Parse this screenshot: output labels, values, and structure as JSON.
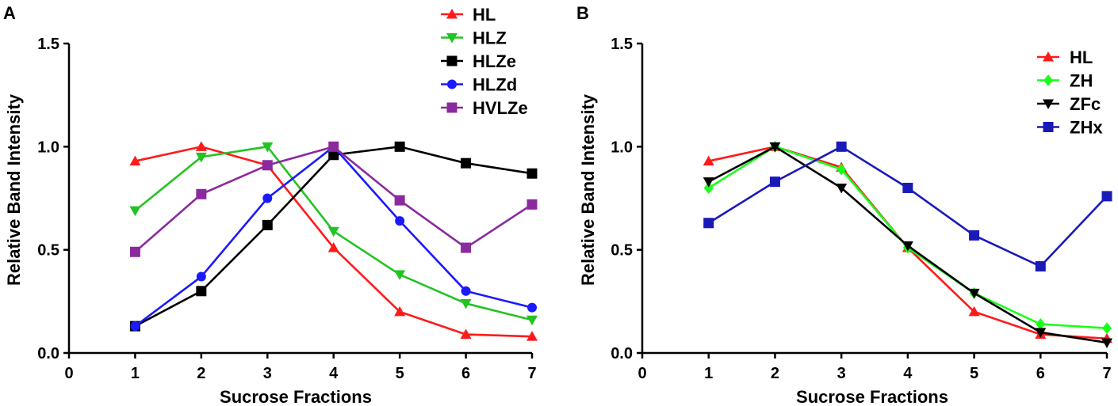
{
  "chart_data": [
    {
      "type": "line",
      "panel_label": "A",
      "xlabel": "Sucrose Fractions",
      "ylabel": "Relative Band Intensity",
      "xlim": [
        0,
        7
      ],
      "ylim": [
        0,
        1.5
      ],
      "xticks": [
        "0",
        "1",
        "2",
        "3",
        "4",
        "5",
        "6",
        "7"
      ],
      "yticks": [
        "0.0",
        "0.5",
        "1.0",
        "1.5"
      ],
      "legend_position": "top-right",
      "x": [
        1,
        2,
        3,
        4,
        5,
        6,
        7
      ],
      "series": [
        {
          "name": "HL",
          "color": "#ff1a1a",
          "marker": "triangle-up",
          "values": [
            0.93,
            1.0,
            0.91,
            0.51,
            0.2,
            0.09,
            0.08
          ]
        },
        {
          "name": "HLZ",
          "color": "#22c322",
          "marker": "triangle-down",
          "values": [
            0.69,
            0.95,
            1.0,
            0.59,
            0.38,
            0.24,
            0.16
          ]
        },
        {
          "name": "HLZe",
          "color": "#000000",
          "marker": "square",
          "values": [
            0.13,
            0.3,
            0.62,
            0.96,
            1.0,
            0.92,
            0.87
          ]
        },
        {
          "name": "HLZd",
          "color": "#1a1aff",
          "marker": "circle",
          "values": [
            0.13,
            0.37,
            0.75,
            1.0,
            0.64,
            0.3,
            0.22
          ]
        },
        {
          "name": "HVLZe",
          "color": "#8b2a9e",
          "marker": "square",
          "values": [
            0.49,
            0.77,
            0.91,
            1.0,
            0.74,
            0.51,
            0.72
          ]
        }
      ]
    },
    {
      "type": "line",
      "panel_label": "B",
      "xlabel": "Sucrose Fractions",
      "ylabel": "Relative Band Intensity",
      "xlim": [
        0,
        7
      ],
      "ylim": [
        0,
        1.5
      ],
      "xticks": [
        "0",
        "1",
        "2",
        "3",
        "4",
        "5",
        "6",
        "7"
      ],
      "yticks": [
        "0.0",
        "0.5",
        "1.0",
        "1.5"
      ],
      "legend_position": "top-right",
      "x": [
        1,
        2,
        3,
        4,
        5,
        6,
        7
      ],
      "series": [
        {
          "name": "HL",
          "color": "#ff1a1a",
          "marker": "triangle-up",
          "values": [
            0.93,
            1.0,
            0.9,
            0.51,
            0.2,
            0.09,
            0.07
          ]
        },
        {
          "name": "ZH",
          "color": "#1aff1a",
          "marker": "diamond",
          "values": [
            0.8,
            1.0,
            0.89,
            0.51,
            0.29,
            0.14,
            0.12
          ]
        },
        {
          "name": "ZFc",
          "color": "#000000",
          "marker": "triangle-down",
          "values": [
            0.83,
            1.0,
            0.8,
            0.52,
            0.29,
            0.1,
            0.05
          ]
        },
        {
          "name": "ZHx",
          "color": "#1a1ab8",
          "marker": "square",
          "values": [
            0.63,
            0.83,
            1.0,
            0.8,
            0.57,
            0.42,
            0.76
          ]
        }
      ]
    }
  ]
}
